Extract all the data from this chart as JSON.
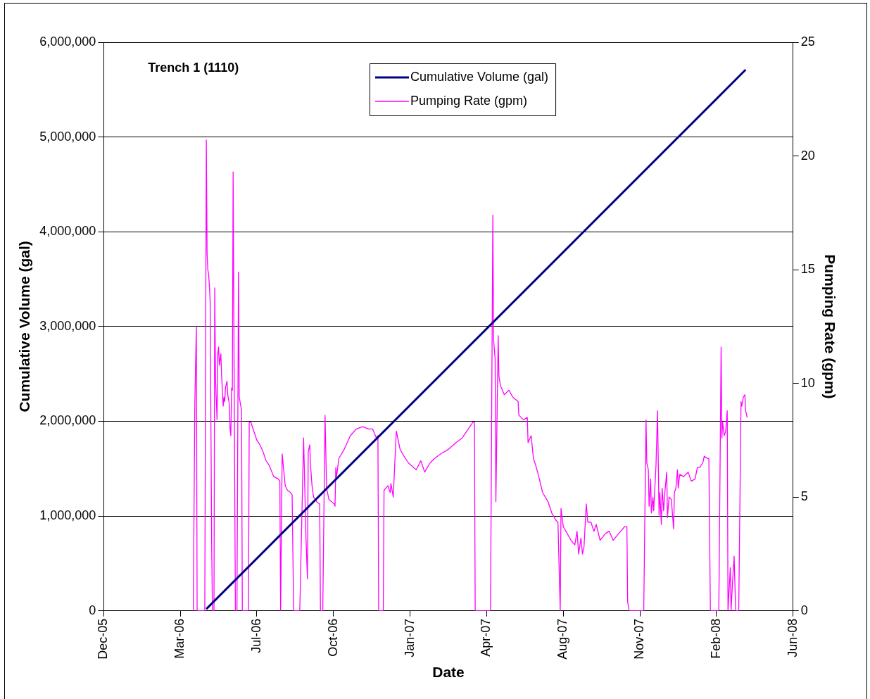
{
  "chart_data": {
    "type": "line",
    "title": "Trench 1 (1110)",
    "xlabel": "Date",
    "ylabel": "Cumulative Volume (gal)",
    "y2label": "Pumping Rate (gpm)",
    "xlim": [
      "2005-12-15",
      "2008-06-02"
    ],
    "xticks": [
      {
        "value": "2005-12-15",
        "label": "Dec-05"
      },
      {
        "value": "2006-03-25",
        "label": "Mar-06"
      },
      {
        "value": "2006-07-03",
        "label": "Jul-06"
      },
      {
        "value": "2006-10-11",
        "label": "Oct-06"
      },
      {
        "value": "2007-01-19",
        "label": "Jan-07"
      },
      {
        "value": "2007-04-29",
        "label": "Apr-07"
      },
      {
        "value": "2007-08-07",
        "label": "Aug-07"
      },
      {
        "value": "2007-11-15",
        "label": "Nov-07"
      },
      {
        "value": "2008-02-23",
        "label": "Feb-08"
      },
      {
        "value": "2008-06-02",
        "label": "Jun-08"
      }
    ],
    "ylim": [
      0,
      6000000
    ],
    "yticks": [
      {
        "value": 0,
        "label": "0"
      },
      {
        "value": 1000000,
        "label": "1,000,000"
      },
      {
        "value": 2000000,
        "label": "2,000,000"
      },
      {
        "value": 3000000,
        "label": "3,000,000"
      },
      {
        "value": 4000000,
        "label": "4,000,000"
      },
      {
        "value": 5000000,
        "label": "5,000,000"
      },
      {
        "value": 6000000,
        "label": "6,000,000"
      }
    ],
    "y2lim": [
      0,
      25
    ],
    "y2ticks": [
      0,
      5,
      10,
      15,
      20,
      25
    ],
    "grid": "y",
    "legend": "top",
    "marker": "none",
    "line_style": "solid",
    "series": [
      {
        "name": "Cumulative Volume (gal)",
        "color": "#000080",
        "x": [
          "2006-04-28",
          "2008-04-01"
        ],
        "values": [
          20000,
          5710000
        ]
      },
      {
        "name": "Pumping Rate (gpm)",
        "color": "#ff00ff",
        "axis": "y2",
        "x": [
          "2006-04-11",
          "2006-04-13",
          "2006-04-15",
          "2006-04-16",
          "2006-04-26",
          "2006-04-28",
          "2006-04-29",
          "2006-04-30",
          "2006-05-01",
          "2006-05-02",
          "2006-05-03",
          "2006-05-05",
          "2006-05-06",
          "2006-05-08",
          "2006-05-09",
          "2006-05-10",
          "2006-05-12",
          "2006-05-13",
          "2006-05-14",
          "2006-05-15",
          "2006-05-17",
          "2006-05-18",
          "2006-05-20",
          "2006-05-21",
          "2006-05-22",
          "2006-05-23",
          "2006-05-25",
          "2006-05-26",
          "2006-05-28",
          "2006-05-29",
          "2006-05-30",
          "2006-05-31",
          "2006-06-01",
          "2006-06-02",
          "2006-06-04",
          "2006-06-05",
          "2006-06-07",
          "2006-06-09",
          "2006-06-10",
          "2006-06-12",
          "2006-06-13",
          "2006-06-14",
          "2006-06-22",
          "2006-06-23",
          "2006-06-25",
          "2006-06-29",
          "2006-07-03",
          "2006-07-07",
          "2006-07-11",
          "2006-07-15",
          "2006-07-19",
          "2006-07-25",
          "2006-07-31",
          "2006-08-02",
          "2006-08-03",
          "2006-08-05",
          "2006-08-07",
          "2006-08-09",
          "2006-08-12",
          "2006-08-16",
          "2006-08-18",
          "2006-08-20",
          "2006-08-28",
          "2006-09-02",
          "2006-09-05",
          "2006-09-07",
          "2006-09-08",
          "2006-09-10",
          "2006-09-11",
          "2006-09-13",
          "2006-09-15",
          "2006-09-19",
          "2006-09-23",
          "2006-09-24",
          "2006-09-27",
          "2006-09-30",
          "2006-10-02",
          "2006-10-05",
          "2006-10-12",
          "2006-10-13",
          "2006-10-14",
          "2006-10-15",
          "2006-10-18",
          "2006-10-25",
          "2006-11-02",
          "2006-11-10",
          "2006-11-18",
          "2006-11-26",
          "2006-12-01",
          "2006-12-06",
          "2006-12-08",
          "2006-12-09",
          "2006-12-15",
          "2006-12-16",
          "2006-12-21",
          "2006-12-24",
          "2006-12-25",
          "2006-12-28",
          "2007-01-01",
          "2007-01-06",
          "2007-01-11",
          "2007-01-17",
          "2007-01-27",
          "2007-02-02",
          "2007-02-07",
          "2007-02-14",
          "2007-02-20",
          "2007-02-28",
          "2007-03-10",
          "2007-03-20",
          "2007-03-28",
          "2007-04-05",
          "2007-04-11",
          "2007-04-13",
          "2007-04-14",
          "2007-05-04",
          "2007-05-07",
          "2007-05-08",
          "2007-05-10",
          "2007-05-11",
          "2007-05-14",
          "2007-05-15",
          "2007-05-17",
          "2007-05-22",
          "2007-05-28",
          "2007-06-02",
          "2007-06-09",
          "2007-06-10",
          "2007-06-16",
          "2007-06-21",
          "2007-06-22",
          "2007-06-26",
          "2007-06-29",
          "2007-07-02",
          "2007-07-06",
          "2007-07-11",
          "2007-07-18",
          "2007-07-23",
          "2007-07-28",
          "2007-07-31",
          "2007-08-03",
          "2007-08-04",
          "2007-08-07",
          "2007-08-12",
          "2007-08-17",
          "2007-08-22",
          "2007-08-25",
          "2007-08-27",
          "2007-08-30",
          "2007-09-01",
          "2007-09-03",
          "2007-09-06",
          "2007-09-08",
          "2007-09-12",
          "2007-09-16",
          "2007-09-19",
          "2007-09-24",
          "2007-10-01",
          "2007-10-06",
          "2007-10-11",
          "2007-10-16",
          "2007-10-21",
          "2007-10-26",
          "2007-10-29",
          "2007-10-30",
          "2007-11-01",
          "2007-11-20",
          "2007-11-23",
          "2007-11-24",
          "2007-11-26",
          "2007-11-27",
          "2007-11-29",
          "2007-11-30",
          "2007-12-02",
          "2007-12-03",
          "2007-12-06",
          "2007-12-08",
          "2007-12-10",
          "2007-12-11",
          "2007-12-13",
          "2007-12-14",
          "2007-12-16",
          "2007-12-17",
          "2007-12-20",
          "2007-12-21",
          "2007-12-23",
          "2007-12-26",
          "2007-12-29",
          "2007-12-30",
          "2008-01-01",
          "2008-01-03",
          "2008-01-04",
          "2008-01-06",
          "2008-01-11",
          "2008-01-17",
          "2008-01-21",
          "2008-01-26",
          "2008-01-29",
          "2008-02-01",
          "2008-02-05",
          "2008-02-07",
          "2008-02-11",
          "2008-02-13",
          "2008-02-15",
          "2008-02-26",
          "2008-02-29",
          "2008-03-01",
          "2008-03-02",
          "2008-03-04",
          "2008-03-06",
          "2008-03-08",
          "2008-03-09",
          "2008-03-12",
          "2008-03-13",
          "2008-03-15",
          "2008-03-17",
          "2008-03-19",
          "2008-03-23",
          "2008-03-26",
          "2008-03-27",
          "2008-03-29",
          "2008-03-31",
          "2008-04-01",
          "2008-04-03"
        ],
        "values": [
          0,
          9.1,
          12.5,
          0,
          0,
          20.7,
          15.7,
          15.0,
          14.8,
          14.3,
          13.6,
          2.9,
          0,
          0,
          14.2,
          10.2,
          8.4,
          11.3,
          11.6,
          10.8,
          11.3,
          10.3,
          9.0,
          9.4,
          9.2,
          9.8,
          10.1,
          9.5,
          9.1,
          8.0,
          7.7,
          9.8,
          9.7,
          19.3,
          5.8,
          0,
          0,
          14.9,
          9.4,
          9.0,
          8.8,
          0,
          0,
          8.3,
          8.3,
          7.9,
          7.5,
          7.3,
          7.0,
          6.6,
          6.4,
          5.9,
          5.8,
          5.7,
          0,
          6.9,
          6.2,
          5.5,
          5.3,
          5.2,
          5.1,
          0,
          0,
          7.6,
          3.3,
          1.4,
          7.0,
          7.3,
          6.4,
          5.5,
          5.0,
          4.8,
          4.7,
          0,
          0,
          8.6,
          5.4,
          4.9,
          4.7,
          4.6,
          6.3,
          5.9,
          6.7,
          7.1,
          7.7,
          8.0,
          8.1,
          8.0,
          8.0,
          7.6,
          7.7,
          0,
          0,
          5.3,
          5.5,
          5.2,
          5.6,
          5.0,
          7.9,
          7.1,
          6.8,
          6.5,
          6.2,
          6.6,
          6.1,
          6.5,
          6.7,
          6.9,
          7.1,
          7.4,
          7.6,
          8.0,
          8.3,
          8.3,
          0,
          0,
          17.4,
          11.9,
          11.1,
          4.8,
          12.1,
          10.3,
          9.9,
          9.5,
          9.7,
          9.4,
          9.2,
          8.6,
          8.4,
          8.5,
          7.4,
          7.7,
          6.7,
          6.4,
          5.9,
          5.2,
          4.8,
          4.3,
          4.0,
          3.9,
          0,
          4.5,
          3.7,
          3.4,
          3.1,
          2.9,
          3.5,
          2.5,
          3.2,
          2.5,
          2.8,
          4.7,
          3.9,
          3.9,
          3.5,
          3.8,
          3.1,
          3.4,
          3.5,
          3.1,
          3.3,
          3.5,
          3.7,
          3.7,
          0.4,
          0,
          0,
          8.4,
          6.5,
          6.2,
          4.6,
          5.8,
          4.3,
          5.0,
          4.4,
          6.4,
          8.8,
          4.2,
          5.2,
          3.8,
          5.4,
          4.4,
          5.0,
          6.1,
          4.1,
          5.0,
          4.9,
          3.6,
          5.2,
          5.4,
          6.2,
          5.4,
          6.0,
          5.9,
          6.1,
          5.7,
          5.8,
          6.3,
          6.3,
          6.5,
          6.8,
          6.7,
          6.7,
          0,
          0,
          11.6,
          7.6,
          8.3,
          7.7,
          7.9,
          8.8,
          0,
          1.9,
          0,
          1.3,
          2.4,
          0,
          0,
          9.2,
          9.0,
          9.4,
          9.5,
          8.8,
          8.5
        ]
      }
    ]
  }
}
